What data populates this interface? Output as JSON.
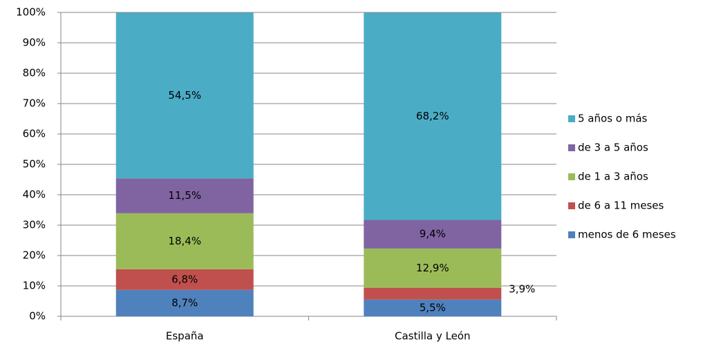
{
  "chart_data": {
    "type": "stacked_bar",
    "categories": [
      "España",
      "Castilla y León"
    ],
    "series": [
      {
        "name": "menos de 6 meses",
        "color": "#4f81bd",
        "values": [
          8.7,
          5.5
        ],
        "value_labels": [
          "8,7%",
          "5,5%"
        ]
      },
      {
        "name": "de 6 a 11 meses",
        "color": "#c0504d",
        "values": [
          6.8,
          3.9
        ],
        "value_labels": [
          "6,8%",
          "3,9%"
        ]
      },
      {
        "name": "de 1 a 3 años",
        "color": "#9bbb59",
        "values": [
          18.4,
          12.9
        ],
        "value_labels": [
          "18,4%",
          "12,9%"
        ]
      },
      {
        "name": "de 3 a 5 años",
        "color": "#8064a2",
        "values": [
          11.5,
          9.4
        ],
        "value_labels": [
          "11,5%",
          "9,4%"
        ]
      },
      {
        "name": "5 años o más",
        "color": "#4bacc6",
        "values": [
          54.5,
          68.2
        ],
        "value_labels": [
          "54,5%",
          "68,2%"
        ]
      }
    ],
    "ylim": [
      0,
      100
    ],
    "yticks": [
      {
        "value": 0,
        "label": "0%"
      },
      {
        "value": 10,
        "label": "10%"
      },
      {
        "value": 20,
        "label": "20%"
      },
      {
        "value": 30,
        "label": "30%"
      },
      {
        "value": 40,
        "label": "40%"
      },
      {
        "value": 50,
        "label": "50%"
      },
      {
        "value": 60,
        "label": "60%"
      },
      {
        "value": 70,
        "label": "70%"
      },
      {
        "value": 80,
        "label": "80%"
      },
      {
        "value": 90,
        "label": "90%"
      },
      {
        "value": 100,
        "label": "100%"
      }
    ],
    "grid": true,
    "legend": "right"
  }
}
